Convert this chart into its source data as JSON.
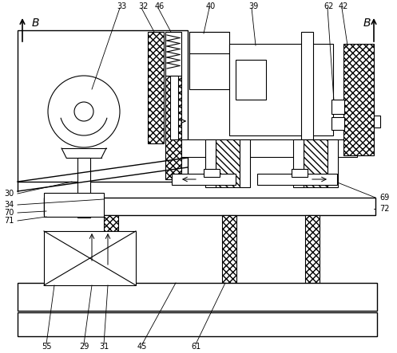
{
  "bg_color": "#ffffff",
  "fig_width": 4.97,
  "fig_height": 4.43,
  "dpi": 100
}
